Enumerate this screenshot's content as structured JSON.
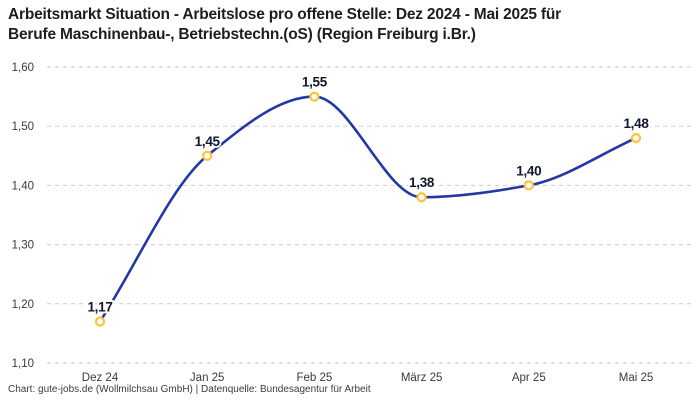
{
  "header": {
    "title_line1": "Arbeitsmarkt Situation - Arbeitslose pro offene Stelle: Dez 2024 - Mai 2025 für",
    "title_line2": "Berufe Maschinenbau-, Betriebstechn.(oS) (Region Freiburg i.Br.)"
  },
  "footer": {
    "credit": "Chart: gute-jobs.de (Wollmilchsau GmbH) | Datenquelle: Bundesagentur für Arbeit"
  },
  "chart_data": {
    "type": "line",
    "title": "Arbeitsmarkt Situation - Arbeitslose pro offene Stelle: Dez 2024 - Mai 2025 für Berufe Maschinenbau-, Betriebstechn.(oS) (Region Freiburg i.Br.)",
    "categories": [
      "Dez 24",
      "Jan 25",
      "Feb 25",
      "März 25",
      "Apr 25",
      "Mai 25"
    ],
    "values": [
      1.17,
      1.45,
      1.55,
      1.38,
      1.4,
      1.48
    ],
    "value_labels": [
      "1,17",
      "1,45",
      "1,55",
      "1,38",
      "1,40",
      "1,48"
    ],
    "xlabel": "",
    "ylabel": "",
    "ylim": [
      1.1,
      1.6
    ],
    "y_ticks": [
      1.1,
      1.2,
      1.3,
      1.4,
      1.5,
      1.6
    ],
    "y_tick_labels": [
      "1,10",
      "1,20",
      "1,30",
      "1,40",
      "1,50",
      "1,60"
    ],
    "grid": "horizontal-dashed",
    "legend": "none",
    "curve": "monotone",
    "colors": {
      "line": "#2438a5",
      "marker_ring": "#ffc33d",
      "marker_fill": "#ffffff",
      "grid": "#cccccc",
      "axis_label": "#3a3a3a",
      "value_label": "#10162e",
      "title": "#1e1e1e"
    }
  }
}
